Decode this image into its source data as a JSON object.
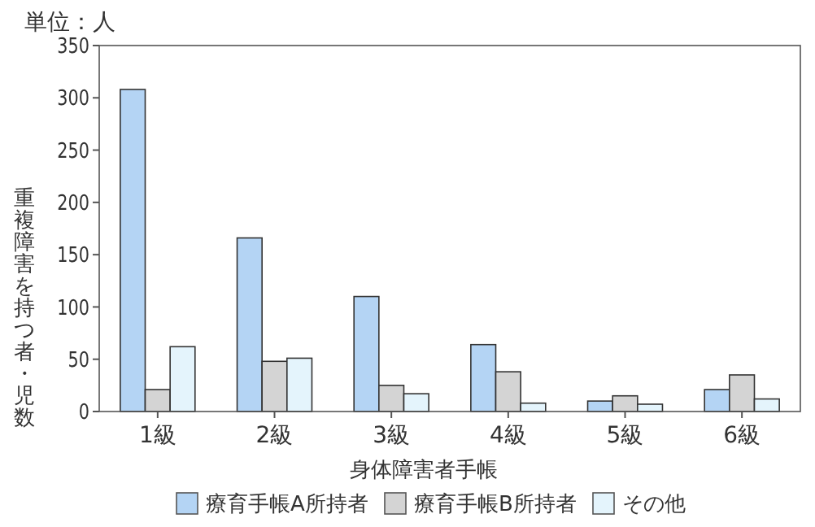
{
  "chart_data": {
    "type": "bar",
    "xlabel": "身体障害者手帳",
    "ylabel": "重複障害を持つ者・児数",
    "annotations": [
      "単位：人"
    ],
    "categories": [
      "1級",
      "2級",
      "3級",
      "4級",
      "5級",
      "6級"
    ],
    "series": [
      {
        "name": "療育手帳A所持者",
        "color": "#b4d4f4",
        "values": [
          308,
          166,
          110,
          64,
          10,
          21
        ]
      },
      {
        "name": "療育手帳B所持者",
        "color": "#d4d4d4",
        "values": [
          21,
          48,
          25,
          38,
          15,
          35
        ]
      },
      {
        "name": "その他",
        "color": "#e4f4fc",
        "values": [
          62,
          51,
          17,
          8,
          7,
          12
        ]
      }
    ],
    "ylim": [
      0,
      350
    ],
    "yticks": [
      0,
      50,
      100,
      150,
      200,
      250,
      300,
      350
    ],
    "grid": false,
    "legend": "bottom"
  }
}
